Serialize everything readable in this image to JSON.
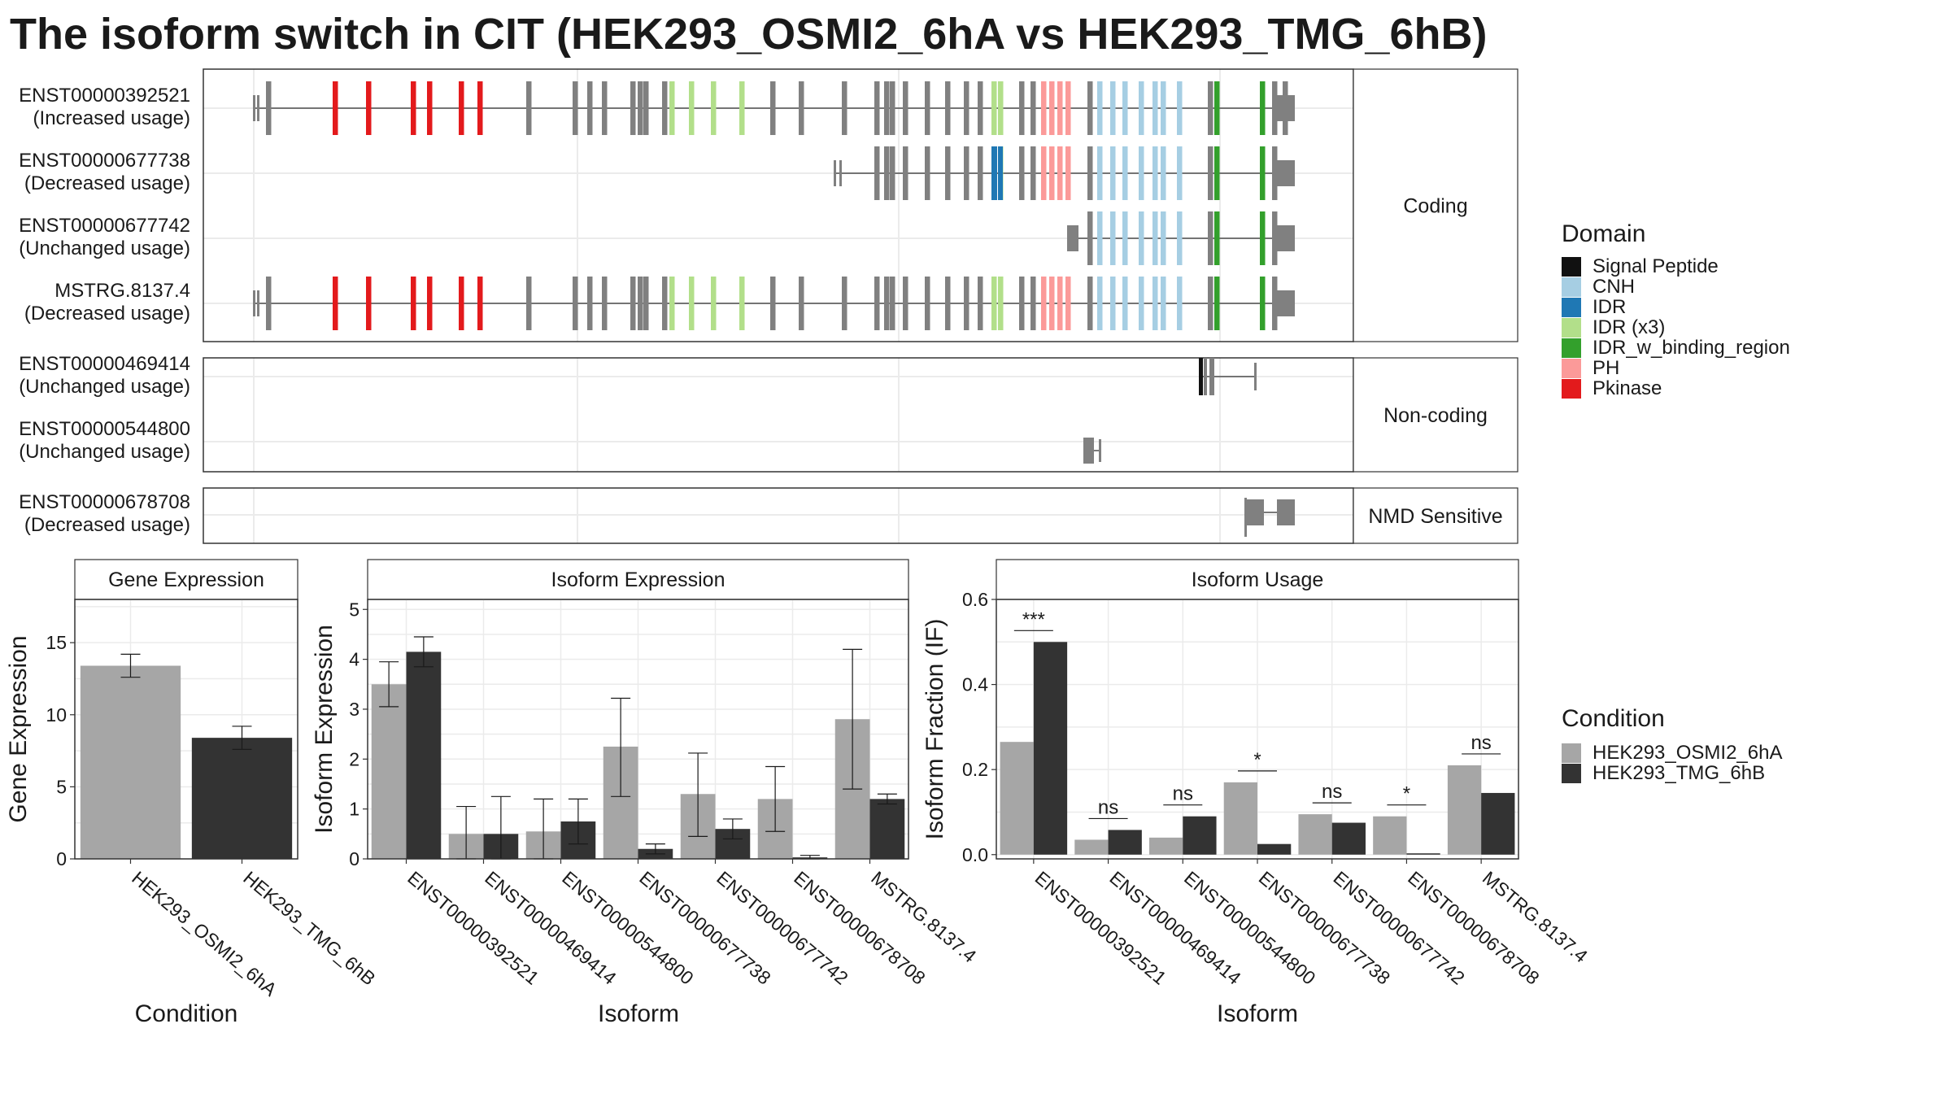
{
  "title": "The isoform switch in CIT (HEK293_OSMI2_6hA vs HEK293_TMG_6hB)",
  "colors": {
    "condition_a": "#a6a6a6",
    "condition_b": "#333333",
    "exon": "#808080",
    "intron": "#4d4d4d",
    "grid": "#ebebeb"
  },
  "domain_legend": {
    "title": "Domain",
    "items": [
      {
        "label": "Signal Peptide",
        "color": "#111111"
      },
      {
        "label": "CNH",
        "color": "#a6cee3"
      },
      {
        "label": "IDR",
        "color": "#1f78b4"
      },
      {
        "label": "IDR (x3)",
        "color": "#b2df8a"
      },
      {
        "label": "IDR_w_binding_region",
        "color": "#33a02c"
      },
      {
        "label": "PH",
        "color": "#fb9a99"
      },
      {
        "label": "Pkinase",
        "color": "#e31a1c"
      }
    ]
  },
  "condition_legend": {
    "title": "Condition",
    "items": [
      {
        "label": "HEK293_OSMI2_6hA",
        "color": "#a6a6a6"
      },
      {
        "label": "HEK293_TMG_6hB",
        "color": "#333333"
      }
    ]
  },
  "structure": {
    "groups": [
      {
        "label": "Coding",
        "transcripts": [
          {
            "id": "ENST00000392521",
            "usage": "(Increased usage)"
          },
          {
            "id": "ENST00000677738",
            "usage": "(Decreased usage)"
          },
          {
            "id": "ENST00000677742",
            "usage": "(Unchanged usage)"
          },
          {
            "id": "MSTRG.8137.4",
            "usage": "(Decreased usage)"
          }
        ]
      },
      {
        "label": "Non-coding",
        "transcripts": [
          {
            "id": "ENST00000469414",
            "usage": "(Unchanged usage)"
          },
          {
            "id": "ENST00000544800",
            "usage": "(Unchanged usage)"
          }
        ]
      },
      {
        "label": "NMD Sensitive",
        "transcripts": [
          {
            "id": "ENST00000678708",
            "usage": "(Decreased usage)"
          }
        ]
      }
    ]
  },
  "chart_data": [
    {
      "type": "bar",
      "strip_title": "Gene Expression",
      "xlabel": "Condition",
      "ylabel": "Gene Expression",
      "categories": [
        "HEK293_OSMI2_6hA",
        "HEK293_TMG_6hB"
      ],
      "values": [
        13.4,
        8.4
      ],
      "error_low": [
        12.6,
        7.6
      ],
      "error_high": [
        14.2,
        9.2
      ],
      "ylim": [
        0,
        18
      ],
      "yticks": [
        0,
        5,
        10,
        15
      ]
    },
    {
      "type": "bar",
      "strip_title": "Isoform Expression",
      "xlabel": "Isoform",
      "ylabel": "Isoform Expression",
      "categories": [
        "ENST00000392521",
        "ENST00000469414",
        "ENST00000544800",
        "ENST00000677738",
        "ENST00000677742",
        "ENST00000678708",
        "MSTRG.8137.4"
      ],
      "series": [
        {
          "name": "HEK293_OSMI2_6hA",
          "values": [
            3.5,
            0.5,
            0.55,
            2.25,
            1.3,
            1.2,
            2.8
          ],
          "error_low": [
            3.05,
            0.0,
            0.0,
            1.25,
            0.45,
            0.55,
            1.4
          ],
          "error_high": [
            3.95,
            1.05,
            1.2,
            3.22,
            2.12,
            1.85,
            4.2
          ]
        },
        {
          "name": "HEK293_TMG_6hB",
          "values": [
            4.15,
            0.5,
            0.75,
            0.2,
            0.6,
            0.03,
            1.2
          ],
          "error_low": [
            3.85,
            0.0,
            0.3,
            0.1,
            0.4,
            0.0,
            1.1
          ],
          "error_high": [
            4.45,
            1.25,
            1.2,
            0.3,
            0.8,
            0.07,
            1.3
          ]
        }
      ],
      "ylim": [
        0,
        5.2
      ],
      "yticks": [
        0,
        1,
        2,
        3,
        4,
        5
      ]
    },
    {
      "type": "bar",
      "strip_title": "Isoform Usage",
      "xlabel": "Isoform",
      "ylabel": "Isoform Fraction (IF)",
      "categories": [
        "ENST00000392521",
        "ENST00000469414",
        "ENST00000544800",
        "ENST00000677738",
        "ENST00000677742",
        "ENST00000678708",
        "MSTRG.8137.4"
      ],
      "series": [
        {
          "name": "HEK293_OSMI2_6hA",
          "values": [
            0.265,
            0.035,
            0.04,
            0.17,
            0.095,
            0.09,
            0.21
          ]
        },
        {
          "name": "HEK293_TMG_6hB",
          "values": [
            0.5,
            0.058,
            0.09,
            0.025,
            0.075,
            0.003,
            0.145
          ]
        }
      ],
      "significance": [
        "***",
        "ns",
        "ns",
        "*",
        "ns",
        "*",
        "ns"
      ],
      "ylim": [
        -0.01,
        0.6
      ],
      "yticks": [
        0.0,
        0.2,
        0.4,
        0.6
      ]
    }
  ]
}
